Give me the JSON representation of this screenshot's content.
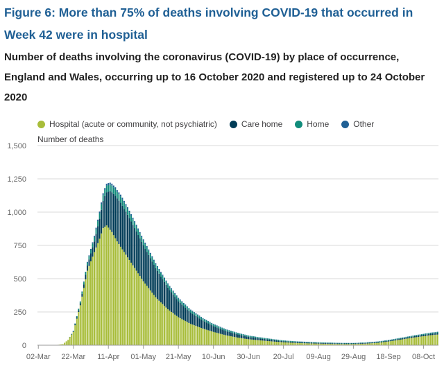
{
  "title": "Figure 6: More than 75% of deaths involving COVID-19 that occurred in Week 42 were in hospital",
  "subtitle": "Number of deaths involving the coronavirus (COVID-19) by place of occurrence, England and Wales, occurring up to 16 October 2020 and registered up to 24 October 2020",
  "colors": {
    "title": "#206095",
    "grid": "#d9d9d9",
    "axis_text": "#666666"
  },
  "chart_data": {
    "type": "bar",
    "stacked": true,
    "ylabel": "Number of deaths",
    "xlabel": "",
    "ylim": [
      0,
      1500
    ],
    "yticks": [
      0,
      250,
      500,
      750,
      1000,
      1250,
      1500
    ],
    "ytick_labels": [
      "0",
      "250",
      "500",
      "750",
      "1,000",
      "1,250",
      "1,500"
    ],
    "x_start": "2020-03-02",
    "x_end": "2020-10-16",
    "xtick_labels": [
      "02-Mar",
      "22-Mar",
      "11-Apr",
      "01-May",
      "21-May",
      "10-Jun",
      "30-Jun",
      "20-Jul",
      "09-Aug",
      "29-Aug",
      "18-Sep",
      "08-Oct"
    ],
    "grid": true,
    "legend_position": "top",
    "series": [
      {
        "name": "Hospital (acute or community, not psychiatric)",
        "color": "#a8bd3a",
        "anchors": [
          [
            "02-Mar",
            0
          ],
          [
            "12-Mar",
            1
          ],
          [
            "16-Mar",
            8
          ],
          [
            "19-Mar",
            40
          ],
          [
            "22-Mar",
            100
          ],
          [
            "26-Mar",
            300
          ],
          [
            "30-Mar",
            560
          ],
          [
            "03-Apr",
            700
          ],
          [
            "06-Apr",
            800
          ],
          [
            "08-Apr",
            880
          ],
          [
            "10-Apr",
            900
          ],
          [
            "13-Apr",
            850
          ],
          [
            "16-Apr",
            780
          ],
          [
            "20-Apr",
            700
          ],
          [
            "25-Apr",
            600
          ],
          [
            "01-May",
            480
          ],
          [
            "08-May",
            360
          ],
          [
            "15-May",
            270
          ],
          [
            "21-May",
            210
          ],
          [
            "28-May",
            160
          ],
          [
            "04-Jun",
            125
          ],
          [
            "10-Jun",
            100
          ],
          [
            "17-Jun",
            75
          ],
          [
            "24-Jun",
            57
          ],
          [
            "30-Jun",
            45
          ],
          [
            "07-Jul",
            36
          ],
          [
            "14-Jul",
            28
          ],
          [
            "20-Jul",
            22
          ],
          [
            "27-Jul",
            17
          ],
          [
            "03-Aug",
            14
          ],
          [
            "09-Aug",
            12
          ],
          [
            "16-Aug",
            10
          ],
          [
            "23-Aug",
            9
          ],
          [
            "29-Aug",
            9
          ],
          [
            "05-Sep",
            12
          ],
          [
            "12-Sep",
            18
          ],
          [
            "18-Sep",
            28
          ],
          [
            "25-Sep",
            42
          ],
          [
            "01-Oct",
            55
          ],
          [
            "08-Oct",
            68
          ],
          [
            "12-Oct",
            75
          ],
          [
            "16-Oct",
            80
          ]
        ]
      },
      {
        "name": "Care home",
        "color": "#003c57",
        "anchors": [
          [
            "02-Mar",
            0
          ],
          [
            "19-Mar",
            0
          ],
          [
            "22-Mar",
            4
          ],
          [
            "26-Mar",
            15
          ],
          [
            "30-Mar",
            40
          ],
          [
            "03-Apr",
            80
          ],
          [
            "06-Apr",
            150
          ],
          [
            "09-Apr",
            230
          ],
          [
            "12-Apr",
            290
          ],
          [
            "15-Apr",
            320
          ],
          [
            "18-Apr",
            330
          ],
          [
            "22-Apr",
            320
          ],
          [
            "26-Apr",
            300
          ],
          [
            "01-May",
            270
          ],
          [
            "06-May",
            235
          ],
          [
            "11-May",
            195
          ],
          [
            "16-May",
            155
          ],
          [
            "21-May",
            120
          ],
          [
            "28-May",
            85
          ],
          [
            "04-Jun",
            60
          ],
          [
            "10-Jun",
            44
          ],
          [
            "17-Jun",
            32
          ],
          [
            "24-Jun",
            24
          ],
          [
            "30-Jun",
            18
          ],
          [
            "07-Jul",
            14
          ],
          [
            "14-Jul",
            11
          ],
          [
            "20-Jul",
            8
          ],
          [
            "27-Jul",
            7
          ],
          [
            "09-Aug",
            5
          ],
          [
            "29-Aug",
            4
          ],
          [
            "18-Sep",
            6
          ],
          [
            "08-Oct",
            10
          ],
          [
            "16-Oct",
            12
          ]
        ]
      },
      {
        "name": "Home",
        "color": "#118c7b",
        "anchors": [
          [
            "02-Mar",
            0
          ],
          [
            "19-Mar",
            0
          ],
          [
            "22-Mar",
            3
          ],
          [
            "30-Mar",
            20
          ],
          [
            "06-Apr",
            42
          ],
          [
            "11-Apr",
            50
          ],
          [
            "18-Apr",
            48
          ],
          [
            "26-Apr",
            40
          ],
          [
            "06-May",
            30
          ],
          [
            "21-May",
            20
          ],
          [
            "10-Jun",
            12
          ],
          [
            "30-Jun",
            8
          ],
          [
            "20-Jul",
            5
          ],
          [
            "09-Aug",
            4
          ],
          [
            "29-Aug",
            3
          ],
          [
            "18-Sep",
            4
          ],
          [
            "08-Oct",
            6
          ],
          [
            "16-Oct",
            7
          ]
        ]
      },
      {
        "name": "Other",
        "color": "#206095",
        "anchors": [
          [
            "02-Mar",
            0
          ],
          [
            "19-Mar",
            0
          ],
          [
            "26-Mar",
            3
          ],
          [
            "06-Apr",
            12
          ],
          [
            "11-Apr",
            15
          ],
          [
            "21-Apr",
            13
          ],
          [
            "06-May",
            9
          ],
          [
            "21-May",
            6
          ],
          [
            "10-Jun",
            4
          ],
          [
            "30-Jun",
            2
          ],
          [
            "20-Jul",
            1
          ],
          [
            "29-Aug",
            1
          ],
          [
            "16-Oct",
            2
          ]
        ]
      }
    ]
  }
}
